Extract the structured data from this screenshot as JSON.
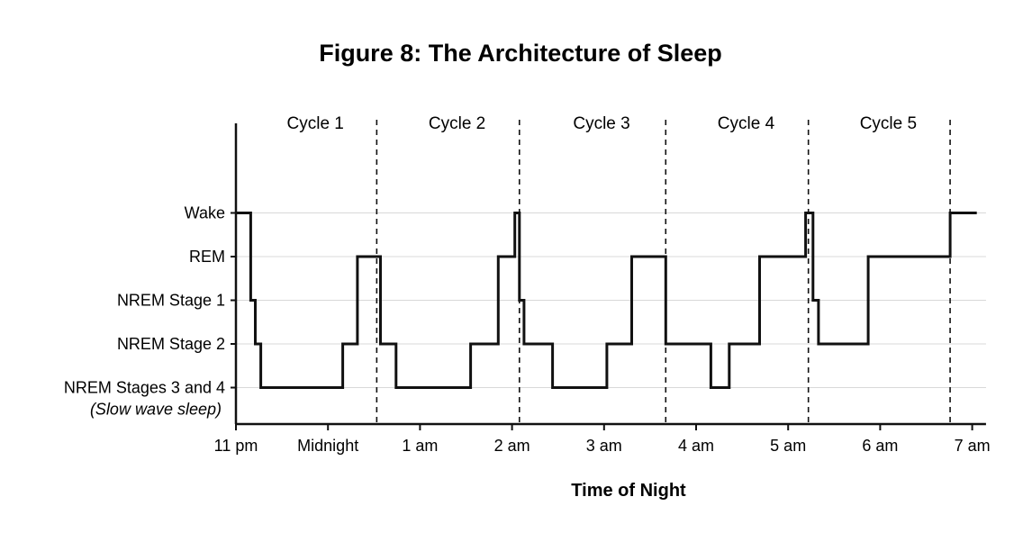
{
  "chart_data": {
    "type": "line",
    "title": "Figure 8: The Architecture of Sleep",
    "xlabel": "Time of Night",
    "ylabel": "",
    "x_ticks": [
      "11 pm",
      "Midnight",
      "1 am",
      "2 am",
      "3 am",
      "4 am",
      "5 am",
      "6 am",
      "7 am"
    ],
    "x_range_hours_after_11pm": [
      0,
      8.15
    ],
    "y_levels": [
      {
        "value": 5,
        "label": "Wake"
      },
      {
        "value": 4,
        "label": "REM"
      },
      {
        "value": 3,
        "label": "NREM Stage 1"
      },
      {
        "value": 2,
        "label": "NREM Stage 2"
      },
      {
        "value": 1,
        "label": "NREM Stages 3 and 4",
        "sublabel": "(Slow wave sleep)"
      }
    ],
    "cycles": [
      {
        "label": "Cycle 1",
        "end_hour": 1.53
      },
      {
        "label": "Cycle 2",
        "end_hour": 3.08
      },
      {
        "label": "Cycle 3",
        "end_hour": 4.67
      },
      {
        "label": "Cycle 4",
        "end_hour": 6.22
      },
      {
        "label": "Cycle 5",
        "end_hour": 7.76
      }
    ],
    "series": [
      {
        "points": [
          [
            0.0,
            5
          ],
          [
            0.16,
            5
          ],
          [
            0.16,
            3
          ],
          [
            0.21,
            3
          ],
          [
            0.21,
            2
          ],
          [
            0.27,
            2
          ],
          [
            0.27,
            1
          ],
          [
            1.16,
            1
          ],
          [
            1.16,
            2
          ],
          [
            1.32,
            2
          ],
          [
            1.32,
            4
          ],
          [
            1.57,
            4
          ],
          [
            1.57,
            2
          ],
          [
            1.74,
            2
          ],
          [
            1.74,
            1
          ],
          [
            2.55,
            1
          ],
          [
            2.55,
            2
          ],
          [
            2.85,
            2
          ],
          [
            2.85,
            4
          ],
          [
            3.03,
            4
          ],
          [
            3.03,
            5
          ],
          [
            3.08,
            5
          ],
          [
            3.08,
            3
          ],
          [
            3.13,
            3
          ],
          [
            3.13,
            2
          ],
          [
            3.44,
            2
          ],
          [
            3.44,
            1
          ],
          [
            4.03,
            1
          ],
          [
            4.03,
            2
          ],
          [
            4.3,
            2
          ],
          [
            4.3,
            4
          ],
          [
            4.67,
            4
          ],
          [
            4.67,
            2
          ],
          [
            5.16,
            2
          ],
          [
            5.16,
            1
          ],
          [
            5.36,
            1
          ],
          [
            5.36,
            2
          ],
          [
            5.69,
            2
          ],
          [
            5.69,
            4
          ],
          [
            6.19,
            4
          ],
          [
            6.19,
            5
          ],
          [
            6.27,
            5
          ],
          [
            6.27,
            3
          ],
          [
            6.33,
            3
          ],
          [
            6.33,
            2
          ],
          [
            6.87,
            2
          ],
          [
            6.87,
            4
          ],
          [
            7.76,
            4
          ],
          [
            7.76,
            5
          ],
          [
            8.05,
            5
          ]
        ]
      }
    ],
    "grid": true,
    "legend": "none"
  }
}
